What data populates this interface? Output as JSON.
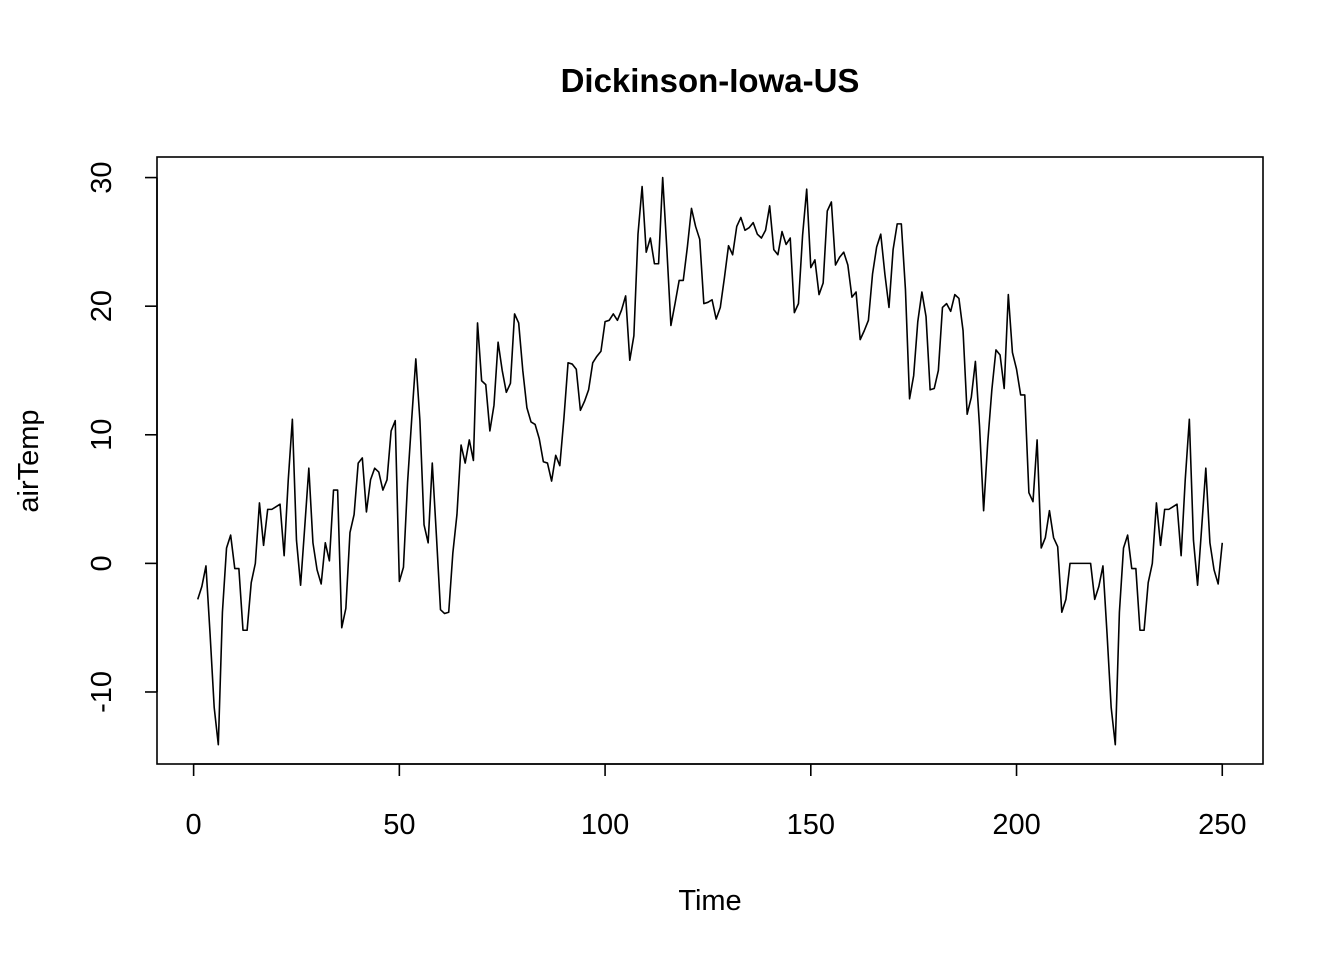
{
  "chart_data": {
    "type": "line",
    "title": "Dickinson-Iowa-US",
    "xlabel": "Time",
    "ylabel": "airTemp",
    "xlim": [
      -8.9,
      259.9
    ],
    "ylim": [
      -15.6,
      31.6
    ],
    "xticks": [
      0,
      50,
      100,
      150,
      200,
      250
    ],
    "yticks": [
      -10,
      0,
      10,
      20,
      30
    ],
    "xtick_labels": [
      "0",
      "50",
      "100",
      "150",
      "200",
      "250"
    ],
    "ytick_labels": [
      "-10",
      "0",
      "10",
      "20",
      "30"
    ],
    "grid": false,
    "line_color": "#000000",
    "series": [
      {
        "x_start": 1,
        "values": [
          -2.8,
          -1.8,
          -0.2,
          -5.5,
          -11.2,
          -14.1,
          -3.8,
          1.2,
          2.2,
          -0.4,
          -0.4,
          -5.2,
          -5.2,
          -1.5,
          0.0,
          4.7,
          1.4,
          4.2,
          4.2,
          4.4,
          4.6,
          0.6,
          6.5,
          11.2,
          1.8,
          -1.7,
          2.8,
          7.4,
          1.6,
          -0.5,
          -1.6,
          1.6,
          0.2,
          5.7,
          5.7,
          -5.0,
          -3.5,
          2.4,
          3.8,
          7.8,
          8.2,
          4.0,
          6.5,
          7.4,
          7.1,
          5.7,
          6.5,
          10.3,
          11.1,
          -1.4,
          -0.3,
          6.3,
          11.2,
          15.9,
          11.1,
          3.0,
          1.6,
          7.8,
          2.2,
          -3.6,
          -3.9,
          -3.8,
          0.8,
          3.8,
          9.2,
          7.8,
          9.6,
          8.0,
          18.7,
          14.2,
          13.9,
          10.3,
          12.3,
          17.2,
          15.0,
          13.3,
          14.0,
          19.4,
          18.7,
          15.0,
          12.1,
          11.0,
          10.8,
          9.7,
          7.9,
          7.8,
          6.4,
          8.4,
          7.6,
          11.3,
          15.6,
          15.5,
          15.1,
          11.9,
          12.6,
          13.5,
          15.6,
          16.1,
          16.5,
          18.8,
          18.9,
          19.4,
          18.9,
          19.7,
          20.8,
          15.8,
          17.7,
          25.6,
          29.3,
          24.2,
          25.3,
          23.3,
          23.3,
          30.0,
          24.5,
          18.5,
          20.2,
          22.0,
          22.0,
          24.6,
          27.6,
          26.2,
          25.2,
          20.2,
          20.3,
          20.5,
          19.0,
          19.9,
          22.2,
          24.7,
          24.0,
          26.2,
          26.9,
          25.9,
          26.1,
          26.5,
          25.6,
          25.3,
          25.9,
          27.8,
          24.4,
          24.0,
          25.8,
          24.8,
          25.3,
          19.5,
          20.2,
          25.5,
          29.1,
          23.0,
          23.6,
          20.9,
          21.8,
          27.4,
          28.1,
          23.2,
          23.8,
          24.2,
          23.2,
          20.7,
          21.1,
          17.4,
          18.1,
          18.9,
          22.5,
          24.6,
          25.6,
          22.5,
          19.9,
          24.4,
          26.4,
          26.4,
          21.3,
          12.8,
          14.6,
          18.8,
          21.1,
          19.2,
          13.5,
          13.6,
          15.0,
          19.9,
          20.2,
          19.6,
          20.9,
          20.6,
          18.1,
          11.6,
          12.9,
          15.7,
          10.7,
          4.1,
          9.4,
          13.5,
          16.6,
          16.2,
          13.6,
          20.9,
          16.4,
          15.1,
          13.1,
          13.1,
          5.5,
          4.8,
          9.6,
          1.2,
          2.0,
          4.1,
          2.0,
          1.3,
          -3.8,
          -2.8,
          0.0,
          0.0,
          0.0,
          0.0,
          0.0,
          0.0,
          -2.8,
          -1.8,
          -0.2,
          -5.5,
          -11.2,
          -14.1,
          -3.8,
          1.2,
          2.2,
          -0.4,
          -0.4,
          -5.2,
          -5.2,
          -1.5,
          0.0,
          4.7,
          1.4,
          4.2,
          4.2,
          4.4,
          4.6,
          0.6,
          6.5,
          11.2,
          1.8,
          -1.7,
          2.8,
          7.4,
          1.6,
          -0.5,
          -1.6,
          1.6
        ]
      }
    ]
  }
}
